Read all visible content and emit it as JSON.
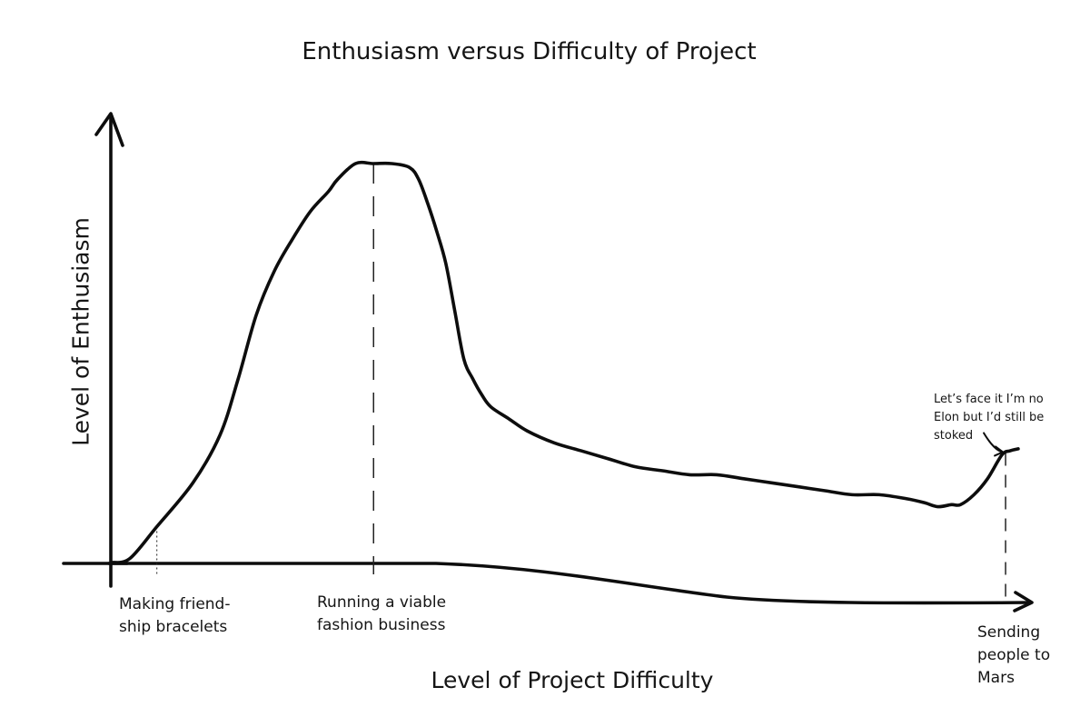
{
  "chart_data": {
    "type": "line",
    "title": "Enthusiasm versus Difficulty of Project",
    "xlabel": "Level of Project Difficulty",
    "ylabel": "Level of Enthusiasm",
    "grid": false,
    "legend": "none",
    "xlim": [
      0,
      100
    ],
    "ylim": [
      0,
      100
    ],
    "categories": [
      {
        "x": 5,
        "label": "Making friend-\nship bracelets"
      },
      {
        "x": 29,
        "label": "Running a viable\nfashion business"
      },
      {
        "x": 99,
        "label": "Sending\npeople to\nMars"
      }
    ],
    "series": [
      {
        "x": [
          0,
          2,
          5,
          9,
          12,
          14,
          16,
          18,
          20,
          22,
          24,
          25,
          27,
          29,
          31,
          33,
          34,
          35,
          36,
          37,
          38,
          39,
          40,
          41,
          42,
          44,
          46,
          49,
          52,
          55,
          58,
          61,
          64,
          67,
          70,
          73,
          76,
          79,
          82,
          85,
          88,
          90,
          91.5,
          93,
          94,
          95.5,
          97,
          98.6,
          99.5,
          100.4
        ],
        "y": [
          0,
          1,
          9,
          20,
          32,
          46,
          62,
          73,
          81,
          88,
          93,
          96,
          100,
          100,
          100,
          99,
          96,
          90,
          83,
          75,
          63,
          51,
          46,
          42,
          39,
          36,
          33,
          30,
          28,
          26,
          24,
          23,
          22,
          22,
          21,
          20,
          19,
          18,
          17,
          17,
          16,
          15,
          14,
          14.5,
          14.5,
          17,
          21,
          27,
          28,
          28.5
        ]
      }
    ],
    "annotations": [
      {
        "x": 99,
        "y": 27,
        "text": "Let’s face it I’m no Elon but I’d still be stoked"
      }
    ]
  }
}
